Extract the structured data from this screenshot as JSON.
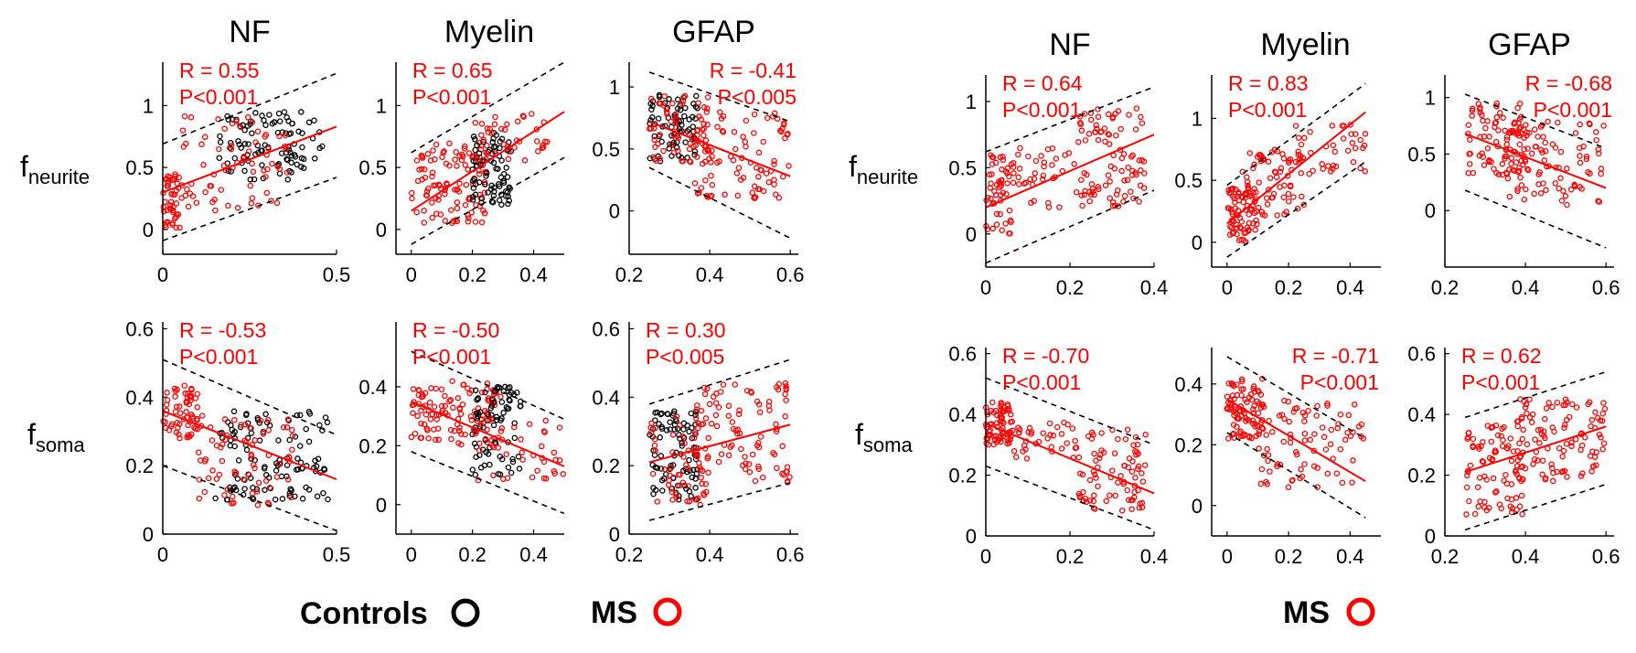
{
  "figure": {
    "row_labels": [
      {
        "main": "f",
        "sub": "neurite"
      },
      {
        "main": "f",
        "sub": "soma"
      }
    ],
    "legend": [
      {
        "label": "Controls",
        "color": "#000000"
      },
      {
        "label": "MS",
        "color": "#ff0000"
      },
      {
        "label": "MS",
        "color": "#ff0000"
      }
    ],
    "colors": {
      "controls": "#000000",
      "ms": "#ff0000",
      "axis": "#000000",
      "bounds": "#000000"
    }
  },
  "chart_data": [
    {
      "type": "scatter",
      "group": "left",
      "row": "f_neurite",
      "title": "NF",
      "xlim": [
        0,
        0.5
      ],
      "ylim": [
        -0.2,
        1.35
      ],
      "xticks": [
        0,
        0.5
      ],
      "xticklabels": [
        "0",
        "0.5"
      ],
      "yticks": [
        0,
        0.5,
        1
      ],
      "yticklabels": [
        "0",
        "0.5",
        "1"
      ],
      "stat": {
        "r": "R = 0.55",
        "p": "P<0.001",
        "align": "left"
      },
      "fit": {
        "x": [
          0,
          0.5
        ],
        "y": [
          0.3,
          0.83
        ]
      },
      "bounds": {
        "upper": {
          "x": [
            0,
            0.5
          ],
          "y": [
            0.69,
            1.26
          ]
        },
        "lower": {
          "x": [
            0,
            0.5
          ],
          "y": [
            -0.09,
            0.42
          ]
        }
      },
      "clusters": [
        {
          "c": "black",
          "x": [
            0.16,
            0.46
          ],
          "y": [
            0.4,
            0.95
          ],
          "n": 95
        },
        {
          "c": "red",
          "x": [
            0.0,
            0.05
          ],
          "y": [
            0.0,
            0.45
          ],
          "n": 45
        },
        {
          "c": "red",
          "x": [
            0.05,
            0.36
          ],
          "y": [
            0.15,
            0.92
          ],
          "n": 70
        }
      ]
    },
    {
      "type": "scatter",
      "group": "left",
      "row": "f_neurite",
      "title": "Myelin",
      "xlim": [
        -0.05,
        0.5
      ],
      "ylim": [
        -0.2,
        1.35
      ],
      "xticks": [
        0,
        0.2,
        0.4
      ],
      "xticklabels": [
        "0",
        "0.2",
        "0.4"
      ],
      "yticks": [
        0,
        0.5,
        1
      ],
      "yticklabels": [
        "0",
        "0.5",
        "1"
      ],
      "stat": {
        "r": "R = 0.65",
        "p": "P<0.001",
        "align": "left"
      },
      "fit": {
        "x": [
          0,
          0.5
        ],
        "y": [
          0.15,
          0.95
        ]
      },
      "bounds": {
        "upper": {
          "x": [
            0,
            0.5
          ],
          "y": [
            0.62,
            1.35
          ]
        },
        "lower": {
          "x": [
            0,
            0.5
          ],
          "y": [
            -0.12,
            0.58
          ]
        }
      },
      "clusters": [
        {
          "c": "red",
          "x": [
            0.0,
            0.25
          ],
          "y": [
            0.05,
            0.7
          ],
          "n": 110
        },
        {
          "c": "black",
          "x": [
            0.2,
            0.33
          ],
          "y": [
            0.2,
            0.8
          ],
          "n": 80
        },
        {
          "c": "red",
          "x": [
            0.2,
            0.45
          ],
          "y": [
            0.55,
            0.95
          ],
          "n": 40
        }
      ]
    },
    {
      "type": "scatter",
      "group": "left",
      "row": "f_neurite",
      "title": "GFAP",
      "xlim": [
        0.2,
        0.62
      ],
      "ylim": [
        -0.35,
        1.2
      ],
      "xticks": [
        0.2,
        0.4,
        0.6
      ],
      "xticklabels": [
        "0.2",
        "0.4",
        "0.6"
      ],
      "yticks": [
        0,
        0.5,
        1
      ],
      "yticklabels": [
        "0",
        "0.5",
        "1"
      ],
      "stat": {
        "r": "R = -0.41",
        "p": "P<0.005",
        "align": "right"
      },
      "fit": {
        "x": [
          0.25,
          0.6
        ],
        "y": [
          0.72,
          0.28
        ]
      },
      "bounds": {
        "upper": {
          "x": [
            0.25,
            0.6
          ],
          "y": [
            1.12,
            0.72
          ]
        },
        "lower": {
          "x": [
            0.25,
            0.6
          ],
          "y": [
            0.35,
            -0.22
          ]
        }
      },
      "clusters": [
        {
          "c": "black",
          "x": [
            0.25,
            0.37
          ],
          "y": [
            0.4,
            0.95
          ],
          "n": 75
        },
        {
          "c": "red",
          "x": [
            0.25,
            0.4
          ],
          "y": [
            0.35,
            0.95
          ],
          "n": 60
        },
        {
          "c": "red",
          "x": [
            0.36,
            0.6
          ],
          "y": [
            0.1,
            0.8
          ],
          "n": 90
        }
      ]
    },
    {
      "type": "scatter",
      "group": "left",
      "row": "f_soma",
      "title": "",
      "xlim": [
        0,
        0.5
      ],
      "ylim": [
        0,
        0.62
      ],
      "xticks": [
        0,
        0.5
      ],
      "xticklabels": [
        "0",
        "0.5"
      ],
      "yticks": [
        0,
        0.2,
        0.4,
        0.6
      ],
      "yticklabels": [
        "0",
        "0.2",
        "0.4",
        "0.6"
      ],
      "stat": {
        "r": "R = -0.53",
        "p": "P<0.001",
        "align": "left"
      },
      "fit": {
        "x": [
          0,
          0.5
        ],
        "y": [
          0.36,
          0.16
        ]
      },
      "bounds": {
        "upper": {
          "x": [
            0,
            0.5
          ],
          "y": [
            0.51,
            0.29
          ]
        },
        "lower": {
          "x": [
            0,
            0.5
          ],
          "y": [
            0.2,
            0.01
          ]
        }
      },
      "clusters": [
        {
          "c": "red",
          "x": [
            0.0,
            0.1
          ],
          "y": [
            0.28,
            0.44
          ],
          "n": 60
        },
        {
          "c": "black",
          "x": [
            0.15,
            0.48
          ],
          "y": [
            0.1,
            0.36
          ],
          "n": 110
        },
        {
          "c": "red",
          "x": [
            0.1,
            0.38
          ],
          "y": [
            0.08,
            0.35
          ],
          "n": 70
        }
      ]
    },
    {
      "type": "scatter",
      "group": "left",
      "row": "f_soma",
      "title": "",
      "xlim": [
        -0.05,
        0.5
      ],
      "ylim": [
        -0.1,
        0.62
      ],
      "xticks": [
        0,
        0.2,
        0.4
      ],
      "xticklabels": [
        "0",
        "0.2",
        "0.4"
      ],
      "yticks": [
        0,
        0.2,
        0.4
      ],
      "yticklabels": [
        "0",
        "0.2",
        "0.4"
      ],
      "stat": {
        "r": "R = -0.50",
        "p": "P<0.001",
        "align": "left"
      },
      "fit": {
        "x": [
          0,
          0.5
        ],
        "y": [
          0.35,
          0.13
        ]
      },
      "bounds": {
        "upper": {
          "x": [
            0,
            0.5
          ],
          "y": [
            0.52,
            0.29
          ]
        },
        "lower": {
          "x": [
            0,
            0.5
          ],
          "y": [
            0.18,
            -0.03
          ]
        }
      },
      "clusters": [
        {
          "c": "red",
          "x": [
            0.0,
            0.3
          ],
          "y": [
            0.2,
            0.42
          ],
          "n": 110
        },
        {
          "c": "black",
          "x": [
            0.2,
            0.36
          ],
          "y": [
            0.1,
            0.4
          ],
          "n": 80
        },
        {
          "c": "red",
          "x": [
            0.2,
            0.5
          ],
          "y": [
            0.08,
            0.3
          ],
          "n": 40
        }
      ]
    },
    {
      "type": "scatter",
      "group": "left",
      "row": "f_soma",
      "title": "",
      "xlim": [
        0.2,
        0.62
      ],
      "ylim": [
        0,
        0.62
      ],
      "xticks": [
        0.2,
        0.4,
        0.6
      ],
      "xticklabels": [
        "0.2",
        "0.4",
        "0.6"
      ],
      "yticks": [
        0,
        0.2,
        0.4,
        0.6
      ],
      "yticklabels": [
        "0",
        "0.2",
        "0.4",
        "0.6"
      ],
      "stat": {
        "r": "R = 0.30",
        "p": "P<0.005",
        "align": "left"
      },
      "fit": {
        "x": [
          0.25,
          0.6
        ],
        "y": [
          0.21,
          0.32
        ]
      },
      "bounds": {
        "upper": {
          "x": [
            0.25,
            0.6
          ],
          "y": [
            0.38,
            0.51
          ]
        },
        "lower": {
          "x": [
            0.25,
            0.6
          ],
          "y": [
            0.04,
            0.15
          ]
        }
      },
      "clusters": [
        {
          "c": "black",
          "x": [
            0.25,
            0.37
          ],
          "y": [
            0.1,
            0.36
          ],
          "n": 90
        },
        {
          "c": "red",
          "x": [
            0.25,
            0.4
          ],
          "y": [
            0.07,
            0.35
          ],
          "n": 60
        },
        {
          "c": "red",
          "x": [
            0.36,
            0.6
          ],
          "y": [
            0.15,
            0.45
          ],
          "n": 90
        }
      ]
    },
    {
      "type": "scatter",
      "group": "right",
      "row": "f_neurite",
      "title": "NF",
      "xlim": [
        0,
        0.4
      ],
      "ylim": [
        -0.25,
        1.2
      ],
      "xticks": [
        0,
        0.2,
        0.4
      ],
      "xticklabels": [
        "0",
        "0.2",
        "0.4"
      ],
      "yticks": [
        0,
        0.5,
        1
      ],
      "yticklabels": [
        "0",
        "0.5",
        "1"
      ],
      "stat": {
        "r": "R = 0.64",
        "p": "P<0.001",
        "align": "left"
      },
      "fit": {
        "x": [
          0,
          0.4
        ],
        "y": [
          0.2,
          0.75
        ]
      },
      "bounds": {
        "upper": {
          "x": [
            0,
            0.4
          ],
          "y": [
            0.62,
            1.11
          ]
        },
        "lower": {
          "x": [
            0,
            0.4
          ],
          "y": [
            -0.22,
            0.33
          ]
        }
      },
      "clusters": [
        {
          "c": "red",
          "x": [
            0.0,
            0.06
          ],
          "y": [
            0.0,
            0.6
          ],
          "n": 50
        },
        {
          "c": "red",
          "x": [
            0.05,
            0.22
          ],
          "y": [
            0.2,
            0.65
          ],
          "n": 40
        },
        {
          "c": "red",
          "x": [
            0.22,
            0.38
          ],
          "y": [
            0.2,
            0.95
          ],
          "n": 90
        }
      ]
    },
    {
      "type": "scatter",
      "group": "right",
      "row": "f_neurite",
      "title": "Myelin",
      "xlim": [
        -0.05,
        0.5
      ],
      "ylim": [
        -0.2,
        1.35
      ],
      "xticks": [
        0,
        0.2,
        0.4
      ],
      "xticklabels": [
        "0",
        "0.2",
        "0.4"
      ],
      "yticks": [
        0,
        0.5,
        1
      ],
      "yticklabels": [
        "0",
        "0.5",
        "1"
      ],
      "stat": {
        "r": "R = 0.83",
        "p": "P<0.001",
        "align": "left"
      },
      "fit": {
        "x": [
          0,
          0.45
        ],
        "y": [
          0.15,
          1.05
        ]
      },
      "bounds": {
        "upper": {
          "x": [
            0,
            0.45
          ],
          "y": [
            0.46,
            1.28
          ]
        },
        "lower": {
          "x": [
            0,
            0.45
          ],
          "y": [
            -0.12,
            0.65
          ]
        }
      },
      "clusters": [
        {
          "c": "red",
          "x": [
            0.0,
            0.1
          ],
          "y": [
            0.0,
            0.45
          ],
          "n": 70
        },
        {
          "c": "red",
          "x": [
            0.05,
            0.25
          ],
          "y": [
            0.2,
            0.75
          ],
          "n": 70
        },
        {
          "c": "red",
          "x": [
            0.2,
            0.45
          ],
          "y": [
            0.55,
            0.95
          ],
          "n": 40
        }
      ]
    },
    {
      "type": "scatter",
      "group": "right",
      "row": "f_neurite",
      "title": "GFAP",
      "xlim": [
        0.2,
        0.62
      ],
      "ylim": [
        -0.5,
        1.2
      ],
      "xticks": [
        0.2,
        0.4,
        0.6
      ],
      "xticklabels": [
        "0.2",
        "0.4",
        "0.6"
      ],
      "yticks": [
        0,
        0.5,
        1
      ],
      "yticklabels": [
        "0",
        "0.5",
        "1"
      ],
      "stat": {
        "r": "R = -0.68",
        "p": "P<0.001",
        "align": "right"
      },
      "fit": {
        "x": [
          0.25,
          0.6
        ],
        "y": [
          0.68,
          0.2
        ]
      },
      "bounds": {
        "upper": {
          "x": [
            0.25,
            0.6
          ],
          "y": [
            1.03,
            0.55
          ]
        },
        "lower": {
          "x": [
            0.25,
            0.6
          ],
          "y": [
            0.18,
            -0.33
          ]
        }
      },
      "clusters": [
        {
          "c": "red",
          "x": [
            0.25,
            0.4
          ],
          "y": [
            0.3,
            0.95
          ],
          "n": 80
        },
        {
          "c": "red",
          "x": [
            0.35,
            0.6
          ],
          "y": [
            0.05,
            0.8
          ],
          "n": 100
        }
      ]
    },
    {
      "type": "scatter",
      "group": "right",
      "row": "f_soma",
      "title": "",
      "xlim": [
        0,
        0.4
      ],
      "ylim": [
        0,
        0.62
      ],
      "xticks": [
        0,
        0.2,
        0.4
      ],
      "xticklabels": [
        "0",
        "0.2",
        "0.4"
      ],
      "yticks": [
        0,
        0.2,
        0.4,
        0.6
      ],
      "yticklabels": [
        "0",
        "0.2",
        "0.4",
        "0.6"
      ],
      "stat": {
        "r": "R = -0.70",
        "p": "P<0.001",
        "align": "left"
      },
      "fit": {
        "x": [
          0,
          0.4
        ],
        "y": [
          0.37,
          0.14
        ]
      },
      "bounds": {
        "upper": {
          "x": [
            0,
            0.4
          ],
          "y": [
            0.52,
            0.3
          ]
        },
        "lower": {
          "x": [
            0,
            0.4
          ],
          "y": [
            0.23,
            0.02
          ]
        }
      },
      "clusters": [
        {
          "c": "red",
          "x": [
            0.0,
            0.06
          ],
          "y": [
            0.3,
            0.44
          ],
          "n": 70
        },
        {
          "c": "red",
          "x": [
            0.05,
            0.22
          ],
          "y": [
            0.25,
            0.38
          ],
          "n": 40
        },
        {
          "c": "red",
          "x": [
            0.22,
            0.38
          ],
          "y": [
            0.08,
            0.35
          ],
          "n": 80
        }
      ]
    },
    {
      "type": "scatter",
      "group": "right",
      "row": "f_soma",
      "title": "",
      "xlim": [
        -0.05,
        0.5
      ],
      "ylim": [
        -0.1,
        0.52
      ],
      "xticks": [
        0,
        0.2,
        0.4
      ],
      "xticklabels": [
        "0",
        "0.2",
        "0.4"
      ],
      "yticks": [
        0,
        0.2,
        0.4
      ],
      "yticklabels": [
        "0",
        "0.2",
        "0.4"
      ],
      "stat": {
        "r": "R = -0.71",
        "p": "P<0.001",
        "align": "right"
      },
      "fit": {
        "x": [
          0,
          0.45
        ],
        "y": [
          0.35,
          0.08
        ]
      },
      "bounds": {
        "upper": {
          "x": [
            0,
            0.45
          ],
          "y": [
            0.49,
            0.22
          ]
        },
        "lower": {
          "x": [
            0,
            0.45
          ],
          "y": [
            0.24,
            -0.04
          ]
        }
      },
      "clusters": [
        {
          "c": "red",
          "x": [
            0.0,
            0.12
          ],
          "y": [
            0.22,
            0.42
          ],
          "n": 90
        },
        {
          "c": "red",
          "x": [
            0.1,
            0.45
          ],
          "y": [
            0.05,
            0.35
          ],
          "n": 80
        }
      ]
    },
    {
      "type": "scatter",
      "group": "right",
      "row": "f_soma",
      "title": "",
      "xlim": [
        0.2,
        0.62
      ],
      "ylim": [
        0,
        0.62
      ],
      "xticks": [
        0.2,
        0.4,
        0.6
      ],
      "xticklabels": [
        "0.2",
        "0.4",
        "0.6"
      ],
      "yticks": [
        0,
        0.2,
        0.4,
        0.6
      ],
      "yticklabels": [
        "0",
        "0.2",
        "0.4",
        "0.6"
      ],
      "stat": {
        "r": "R = 0.62",
        "p": "P<0.001",
        "align": "left"
      },
      "fit": {
        "x": [
          0.25,
          0.6
        ],
        "y": [
          0.21,
          0.36
        ]
      },
      "bounds": {
        "upper": {
          "x": [
            0.25,
            0.6
          ],
          "y": [
            0.39,
            0.54
          ]
        },
        "lower": {
          "x": [
            0.25,
            0.6
          ],
          "y": [
            0.02,
            0.17
          ]
        }
      },
      "clusters": [
        {
          "c": "red",
          "x": [
            0.25,
            0.4
          ],
          "y": [
            0.07,
            0.38
          ],
          "n": 90
        },
        {
          "c": "red",
          "x": [
            0.38,
            0.6
          ],
          "y": [
            0.18,
            0.45
          ],
          "n": 100
        }
      ]
    }
  ]
}
